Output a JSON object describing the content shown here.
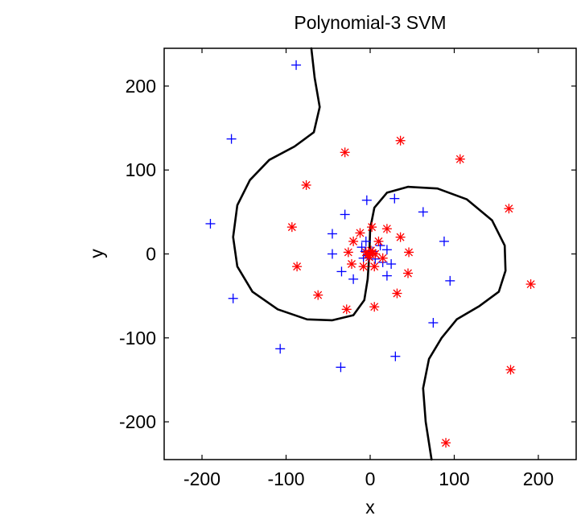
{
  "chart_data": {
    "type": "scatter",
    "title": "Polynomial-3 SVM",
    "xlabel": "x",
    "ylabel": "y",
    "xlim": [
      -245,
      245
    ],
    "ylim": [
      -245,
      245
    ],
    "xticks": [
      -200,
      -100,
      0,
      100,
      200
    ],
    "yticks": [
      -200,
      -100,
      0,
      100,
      200
    ],
    "grid": false,
    "colors": {
      "class_plus": "#0000ff",
      "class_star": "#ff0000",
      "boundary": "#000000"
    },
    "series": [
      {
        "marker": "plus",
        "color": "#0000ff",
        "points": [
          [
            -88,
            225
          ],
          [
            -165,
            137
          ],
          [
            -190,
            36
          ],
          [
            -163,
            -53
          ],
          [
            -107,
            -113
          ],
          [
            -35,
            -135
          ],
          [
            -4,
            64
          ],
          [
            29,
            66
          ],
          [
            63,
            50
          ],
          [
            -30,
            47
          ],
          [
            -45,
            24
          ],
          [
            -45,
            0
          ],
          [
            -34,
            -21
          ],
          [
            -20,
            -30
          ],
          [
            20,
            -26
          ],
          [
            30,
            -122
          ],
          [
            75,
            -82
          ],
          [
            88,
            15
          ],
          [
            95,
            -32
          ],
          [
            -10,
            8
          ],
          [
            -8,
            -5
          ],
          [
            -5,
            15
          ],
          [
            12,
            10
          ],
          [
            15,
            -10
          ],
          [
            20,
            5
          ],
          [
            25,
            -12
          ],
          [
            -2,
            -2
          ],
          [
            3,
            3
          ],
          [
            6,
            -6
          ],
          [
            -6,
            3
          ]
        ]
      },
      {
        "marker": "star",
        "color": "#ff0000",
        "points": [
          [
            -30,
            121
          ],
          [
            36,
            135
          ],
          [
            107,
            113
          ],
          [
            -76,
            82
          ],
          [
            165,
            54
          ],
          [
            -93,
            32
          ],
          [
            -87,
            -15
          ],
          [
            -62,
            -49
          ],
          [
            -28,
            -66
          ],
          [
            5,
            -63
          ],
          [
            32,
            -47
          ],
          [
            45,
            -23
          ],
          [
            46,
            2
          ],
          [
            36,
            20
          ],
          [
            20,
            30
          ],
          [
            -12,
            25
          ],
          [
            -20,
            15
          ],
          [
            -26,
            2
          ],
          [
            -22,
            -12
          ],
          [
            191,
            -36
          ],
          [
            167,
            -138
          ],
          [
            90,
            -225
          ],
          [
            2,
            32
          ],
          [
            10,
            15
          ],
          [
            15,
            -5
          ],
          [
            -8,
            -15
          ],
          [
            5,
            -15
          ],
          [
            0,
            0
          ],
          [
            3,
            1
          ],
          [
            -3,
            -1
          ],
          [
            1,
            4
          ],
          [
            -1,
            -4
          ],
          [
            6,
            0
          ],
          [
            -5,
            2
          ]
        ]
      }
    ],
    "boundary_curves": [
      [
        [
          -70,
          245
        ],
        [
          -66,
          210
        ],
        [
          -60,
          175
        ],
        [
          -67,
          145
        ],
        [
          -90,
          128
        ],
        [
          -120,
          112
        ],
        [
          -143,
          88
        ],
        [
          -158,
          58
        ],
        [
          -163,
          20
        ],
        [
          -158,
          -15
        ],
        [
          -140,
          -45
        ],
        [
          -110,
          -66
        ],
        [
          -75,
          -78
        ],
        [
          -45,
          -79
        ],
        [
          -20,
          -73
        ],
        [
          -7,
          -55
        ],
        [
          -3,
          -30
        ],
        [
          -1,
          0
        ],
        [
          0,
          30
        ],
        [
          5,
          55
        ],
        [
          20,
          73
        ],
        [
          45,
          80
        ],
        [
          80,
          78
        ],
        [
          115,
          65
        ],
        [
          145,
          40
        ],
        [
          160,
          10
        ],
        [
          161,
          -20
        ],
        [
          153,
          -45
        ],
        [
          130,
          -62
        ],
        [
          103,
          -78
        ],
        [
          85,
          -100
        ],
        [
          70,
          -125
        ],
        [
          63,
          -160
        ],
        [
          66,
          -200
        ],
        [
          73,
          -245
        ]
      ]
    ]
  }
}
